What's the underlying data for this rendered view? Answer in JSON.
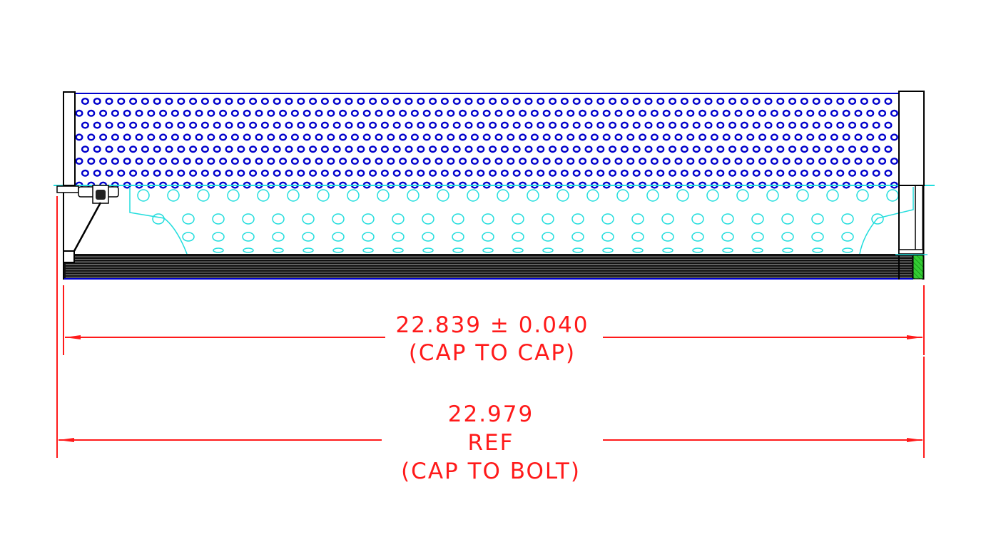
{
  "colors": {
    "outer_perforation": "#0000cc",
    "inner_core": "#22dddd",
    "dimension": "#ff1a1a",
    "outline": "#000000",
    "seal": "#33cc33"
  },
  "dimensions": {
    "cap_to_cap": {
      "value": "22.839 ± 0.040",
      "note": "(CAP TO CAP)"
    },
    "cap_to_bolt": {
      "value": "22.979",
      "ref": "REF",
      "note": "(CAP TO BOLT)"
    }
  }
}
